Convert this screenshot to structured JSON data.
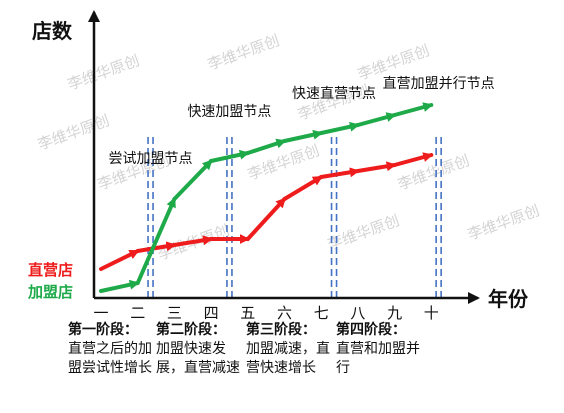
{
  "chart_data": {
    "type": "line",
    "ylabel": "店数",
    "xlabel": "年份",
    "categories": [
      "一",
      "二",
      "三",
      "四",
      "五",
      "六",
      "七",
      "八",
      "九",
      "十"
    ],
    "series": [
      {
        "name": "直营店",
        "color": "#ee1c1c",
        "points": [
          [
            0,
            0.55
          ],
          [
            1,
            1.0
          ],
          [
            2,
            1.15
          ],
          [
            3,
            1.3
          ],
          [
            4,
            1.3
          ],
          [
            5,
            2.3
          ],
          [
            6,
            2.85
          ],
          [
            7,
            3.0
          ],
          [
            8,
            3.15
          ],
          [
            9,
            3.4
          ]
        ]
      },
      {
        "name": "加盟店",
        "color": "#1faa4a",
        "points": [
          [
            0,
            0.0
          ],
          [
            1,
            0.2
          ],
          [
            2,
            2.3
          ],
          [
            3,
            3.25
          ],
          [
            4,
            3.45
          ],
          [
            5,
            3.75
          ],
          [
            6,
            3.95
          ],
          [
            7,
            4.15
          ],
          [
            8,
            4.4
          ],
          [
            9,
            4.65
          ]
        ]
      }
    ],
    "annotations": [
      {
        "text": "尝试加盟节点",
        "x": 1.35
      },
      {
        "text": "快速加盟节点",
        "x": 3.5
      },
      {
        "text": "快速直营节点",
        "x": 6.35
      },
      {
        "text": "直营加盟并行节点",
        "x": 9.2
      }
    ],
    "node_lines": [
      1.35,
      3.5,
      6.35,
      9.2
    ]
  },
  "watermark": "李维华原创",
  "phases": [
    {
      "title": "第一阶段：",
      "desc": "直营之后的加盟尝试性增长"
    },
    {
      "title": "第二阶段：",
      "desc": "加盟快速发展，直营减速"
    },
    {
      "title": "第三阶段：",
      "desc": "加盟减速，直营快速增长"
    },
    {
      "title": "第四阶段：",
      "desc": "直营和加盟并行"
    }
  ]
}
